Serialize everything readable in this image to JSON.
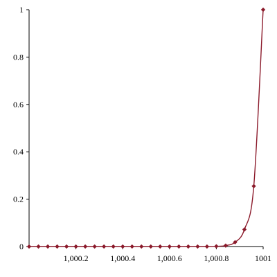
{
  "chart_data": {
    "type": "line",
    "title": "",
    "xlabel": "",
    "ylabel": "",
    "xlim": [
      1000.0,
      1001.0
    ],
    "ylim": [
      0,
      1
    ],
    "grid": false,
    "legend": "none",
    "x_ticks": [
      {
        "value": 1000.2,
        "label": "1,000.2"
      },
      {
        "value": 1000.4,
        "label": "1,000.4"
      },
      {
        "value": 1000.6,
        "label": "1,000.6"
      },
      {
        "value": 1000.8,
        "label": "1,000.8"
      },
      {
        "value": 1001.0,
        "label": "1001"
      }
    ],
    "y_ticks": [
      {
        "value": 0,
        "label": "0"
      },
      {
        "value": 0.2,
        "label": "0.2"
      },
      {
        "value": 0.4,
        "label": "0.4"
      },
      {
        "value": 0.6,
        "label": "0.6"
      },
      {
        "value": 0.8,
        "label": "0.8"
      },
      {
        "value": 1,
        "label": "1"
      }
    ],
    "series": [
      {
        "color": "#8b1a2b",
        "x": [
          1000.0,
          1000.04,
          1000.08,
          1000.12,
          1000.16,
          1000.2,
          1000.24,
          1000.28,
          1000.32,
          1000.36,
          1000.4,
          1000.44,
          1000.48,
          1000.52,
          1000.56,
          1000.6,
          1000.64,
          1000.68,
          1000.72,
          1000.76,
          1000.8,
          1000.84,
          1000.88,
          1000.92,
          1000.96,
          1001.0
        ],
        "y": [
          0,
          0,
          0,
          0,
          0,
          0,
          0,
          0,
          0,
          0,
          0,
          0,
          0,
          0,
          0,
          0,
          0,
          0,
          0,
          0,
          0.001,
          0.004,
          0.018,
          0.072,
          0.255,
          1.0
        ]
      }
    ]
  }
}
